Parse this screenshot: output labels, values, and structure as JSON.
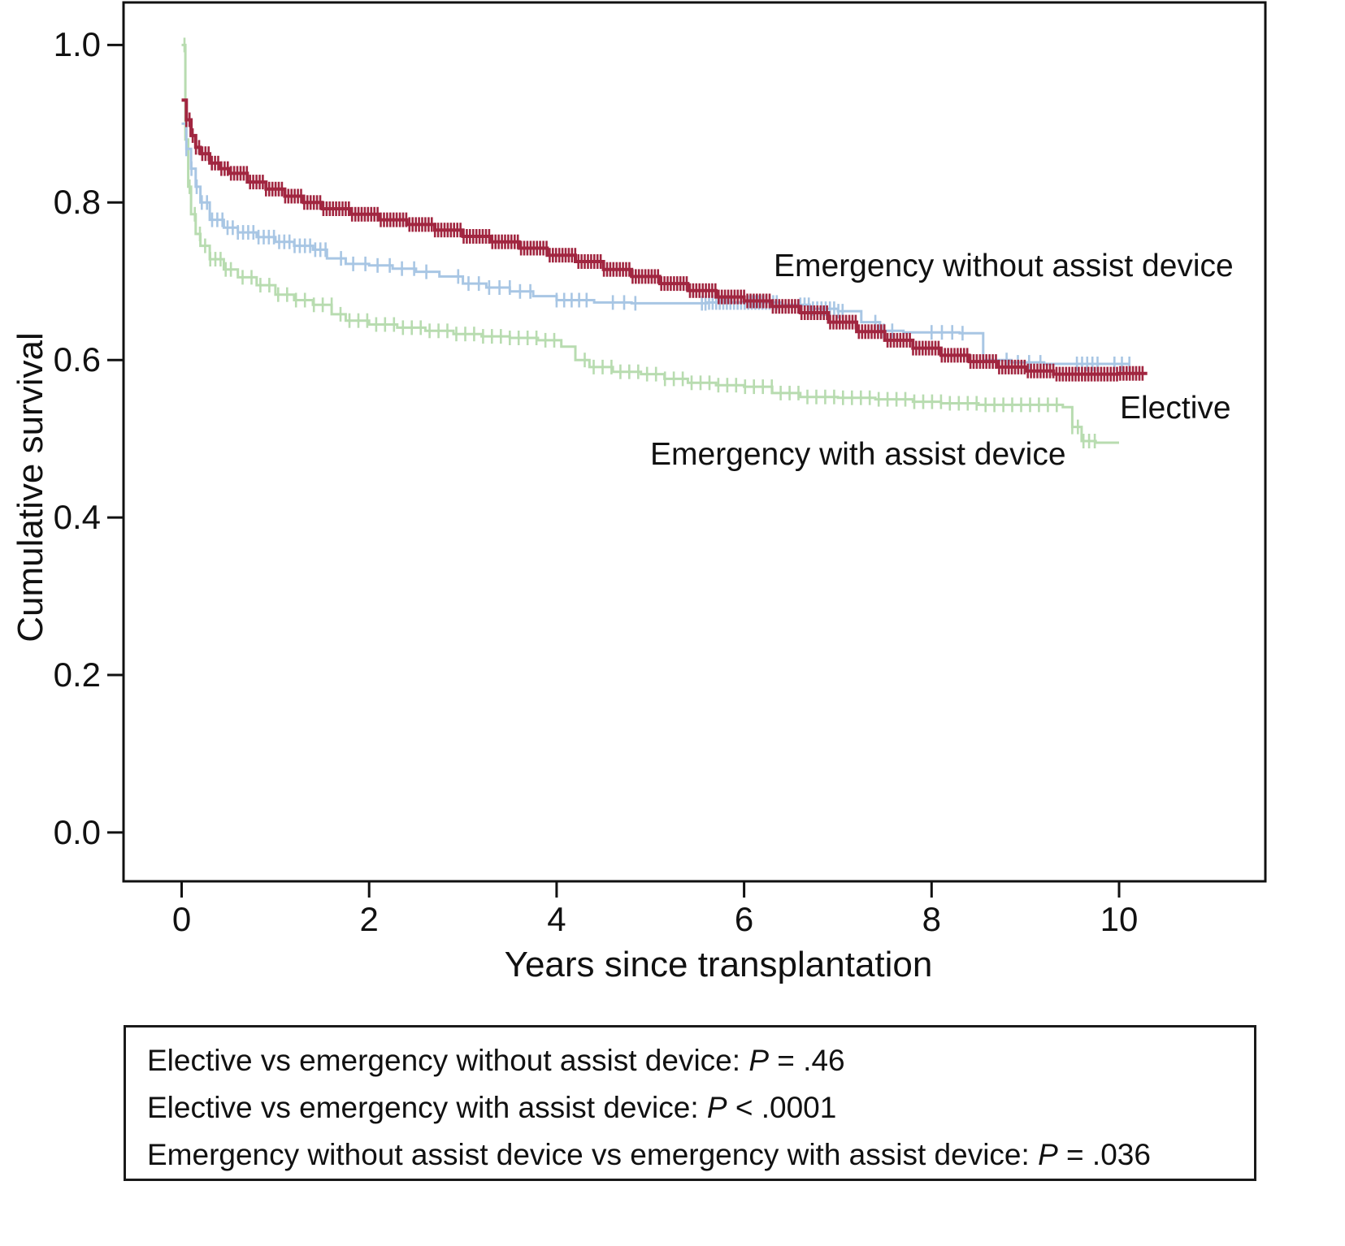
{
  "figure": {
    "background": "#ffffff",
    "frame_color": "#111111"
  },
  "chart_data": {
    "type": "line",
    "subtype": "kaplan-meier-step",
    "title": "",
    "xlabel": "Years since transplantation",
    "ylabel": "Cumulative survival",
    "xlim": [
      -0.62,
      11.56
    ],
    "ylim": [
      -0.062,
      1.054
    ],
    "xticks": [
      0,
      2,
      4,
      6,
      8,
      10
    ],
    "xtick_labels": [
      "0",
      "2",
      "4",
      "6",
      "8",
      "10"
    ],
    "yticks": [
      0.0,
      0.2,
      0.4,
      0.6,
      0.8,
      1.0
    ],
    "ytick_labels": [
      "0.0",
      "0.2",
      "0.4",
      "0.6",
      "0.8",
      "1.0"
    ],
    "grid": false,
    "legend_position": "labels-on-plot",
    "series": [
      {
        "name": "Elective",
        "color": "#a12640",
        "line_width": 4,
        "x": [
          0,
          0.05,
          0.1,
          0.15,
          0.2,
          0.3,
          0.4,
          0.5,
          0.7,
          0.9,
          1.1,
          1.3,
          1.5,
          1.8,
          2.1,
          2.4,
          2.7,
          3.0,
          3.3,
          3.6,
          3.9,
          4.2,
          4.5,
          4.8,
          5.1,
          5.4,
          5.7,
          6.0,
          6.3,
          6.6,
          6.9,
          7.2,
          7.5,
          7.8,
          8.1,
          8.4,
          8.7,
          9.0,
          9.3,
          9.7,
          10.0,
          10.3
        ],
        "y": [
          0.93,
          0.905,
          0.885,
          0.87,
          0.862,
          0.85,
          0.843,
          0.837,
          0.826,
          0.817,
          0.808,
          0.8,
          0.792,
          0.785,
          0.778,
          0.772,
          0.765,
          0.757,
          0.75,
          0.742,
          0.733,
          0.725,
          0.715,
          0.706,
          0.697,
          0.688,
          0.68,
          0.675,
          0.668,
          0.66,
          0.648,
          0.636,
          0.625,
          0.615,
          0.606,
          0.598,
          0.591,
          0.586,
          0.582,
          0.582,
          0.583,
          0.583
        ],
        "censor_ranges": [
          {
            "from": 0.05,
            "to": 10.25,
            "step": 0.034
          }
        ]
      },
      {
        "name": "Emergency without assist device",
        "color": "#a8c6e4",
        "line_width": 3,
        "x": [
          0,
          0.05,
          0.1,
          0.15,
          0.2,
          0.3,
          0.45,
          0.6,
          0.8,
          1.0,
          1.2,
          1.4,
          1.55,
          1.75,
          2.0,
          2.25,
          2.5,
          2.75,
          3.0,
          3.25,
          3.5,
          3.75,
          4.0,
          4.4,
          4.8,
          5.2,
          5.6,
          6.0,
          6.4,
          6.7,
          7.0,
          7.25,
          7.45,
          7.7,
          8.0,
          8.3,
          8.55,
          8.85,
          9.2,
          9.6,
          10.1
        ],
        "y": [
          0.9,
          0.868,
          0.843,
          0.82,
          0.8,
          0.778,
          0.768,
          0.762,
          0.756,
          0.75,
          0.745,
          0.74,
          0.729,
          0.722,
          0.72,
          0.716,
          0.712,
          0.706,
          0.697,
          0.692,
          0.687,
          0.681,
          0.676,
          0.673,
          0.672,
          0.672,
          0.673,
          0.673,
          0.67,
          0.665,
          0.662,
          0.648,
          0.637,
          0.635,
          0.635,
          0.634,
          0.6,
          0.597,
          0.595,
          0.595,
          0.595
        ],
        "censor_ranges": [
          {
            "from": 0.05,
            "to": 1.55,
            "step": 0.055
          },
          {
            "from": 1.7,
            "to": 2.7,
            "step": 0.13
          },
          {
            "from": 2.95,
            "to": 3.8,
            "step": 0.11
          },
          {
            "from": 4.0,
            "to": 4.35,
            "step": 0.08
          },
          {
            "from": 4.6,
            "to": 4.85,
            "step": 0.12
          },
          {
            "from": 5.55,
            "to": 6.35,
            "step": 0.038
          },
          {
            "from": 6.6,
            "to": 7.05,
            "step": 0.045
          },
          {
            "from": 7.4,
            "to": 7.65,
            "step": 0.09
          },
          {
            "from": 8.0,
            "to": 8.35,
            "step": 0.11
          },
          {
            "from": 8.8,
            "to": 9.25,
            "step": 0.12
          },
          {
            "from": 9.55,
            "to": 9.8,
            "step": 0.055
          },
          {
            "from": 9.95,
            "to": 10.12,
            "step": 0.08
          }
        ]
      },
      {
        "name": "Emergency with assist device",
        "color": "#b8dcb0",
        "line_width": 3,
        "x": [
          0,
          0.04,
          0.07,
          0.1,
          0.15,
          0.2,
          0.3,
          0.45,
          0.6,
          0.8,
          1.0,
          1.2,
          1.4,
          1.6,
          1.75,
          2.0,
          2.3,
          2.6,
          2.9,
          3.2,
          3.5,
          3.8,
          4.05,
          4.2,
          4.35,
          4.6,
          4.9,
          5.15,
          5.4,
          5.7,
          6.0,
          6.3,
          6.6,
          7.0,
          7.4,
          7.8,
          8.1,
          8.5,
          9.0,
          9.4,
          9.5,
          9.6,
          9.75,
          10.0
        ],
        "y": [
          1.0,
          0.88,
          0.82,
          0.785,
          0.76,
          0.745,
          0.728,
          0.715,
          0.705,
          0.695,
          0.683,
          0.676,
          0.67,
          0.658,
          0.65,
          0.645,
          0.641,
          0.637,
          0.633,
          0.63,
          0.628,
          0.625,
          0.617,
          0.6,
          0.591,
          0.585,
          0.582,
          0.576,
          0.571,
          0.568,
          0.566,
          0.558,
          0.553,
          0.552,
          0.55,
          0.547,
          0.545,
          0.543,
          0.543,
          0.54,
          0.515,
          0.497,
          0.495,
          0.495
        ],
        "censor_ranges": [
          {
            "from": 0.03,
            "to": 0.55,
            "step": 0.055
          },
          {
            "from": 0.65,
            "to": 4.0,
            "step": 0.095
          },
          {
            "from": 4.3,
            "to": 9.4,
            "step": 0.095
          },
          {
            "from": 9.5,
            "to": 9.78,
            "step": 0.06
          }
        ]
      }
    ],
    "annotations": {
      "stats_lines": [
        {
          "text": "Elective vs emergency without assist device: ",
          "p": "P",
          "value": " = .46"
        },
        {
          "text": "Elective vs emergency with assist device: ",
          "p": "P",
          "value": " < .0001"
        },
        {
          "text": "Emergency without assist device vs emergency with assist device: ",
          "p": "P",
          "value": " = .036"
        }
      ]
    }
  }
}
